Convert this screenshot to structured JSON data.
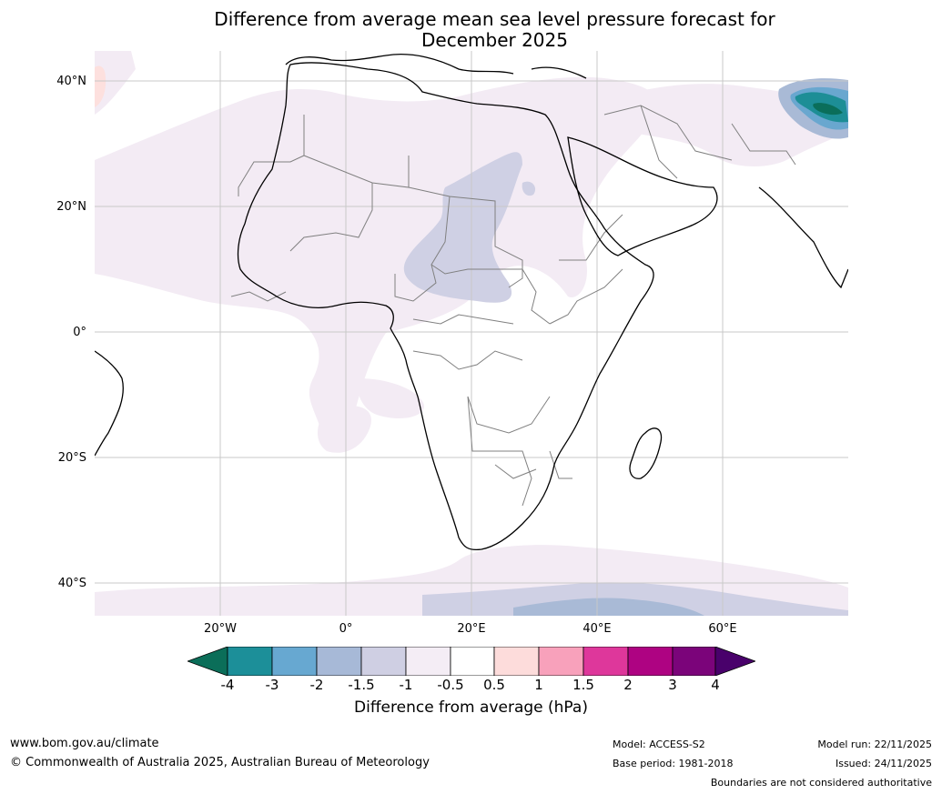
{
  "title": {
    "line1": "Difference from average mean sea level pressure forecast for",
    "line2": "December 2025"
  },
  "map": {
    "lat_labels": [
      "40°N",
      "20°N",
      "0°",
      "20°S",
      "40°S"
    ],
    "lon_labels": [
      "20°W",
      "0°",
      "20°E",
      "40°E",
      "60°E"
    ],
    "colors": {
      "land_outline": "#000000",
      "borders": "#808080",
      "grid": "#c8c8c8",
      "neg_0_5_to_1": "#f3ebf4",
      "neg_1_to_1_5": "#cfd0e4",
      "neg_1_5_to_2": "#a9bad6",
      "neg_2_to_3": "#69a7cf",
      "neg_3_to_4": "#1d8e96",
      "neg_below_4": "#0a6e5a",
      "pos_0_5_to_1": "#fde0de"
    }
  },
  "colorbar": {
    "ticks": [
      "-4",
      "-3",
      "-2",
      "-1.5",
      "-1",
      "-0.5",
      "0.5",
      "1",
      "1.5",
      "2",
      "3",
      "4"
    ],
    "colors": [
      "#0b6e59",
      "#1c8f99",
      "#67a8d1",
      "#a7b9d7",
      "#cfcfe3",
      "#f4edf5",
      "#ffffff",
      "#fddcdb",
      "#f8a1bb",
      "#de379b",
      "#ae0382",
      "#7b047a",
      "#49016b"
    ],
    "label": "Difference from average (hPa)"
  },
  "footer": {
    "url": "www.bom.gov.au/climate",
    "copyright": "© Commonwealth of Australia 2025, Australian Bureau of Meteorology",
    "model": "Model: ACCESS-S2",
    "base_period": "Base period: 1981-2018",
    "model_run": "Model run: 22/11/2025",
    "issued": "Issued: 24/11/2025",
    "disclaimer": "Boundaries are not considered authoritative"
  }
}
